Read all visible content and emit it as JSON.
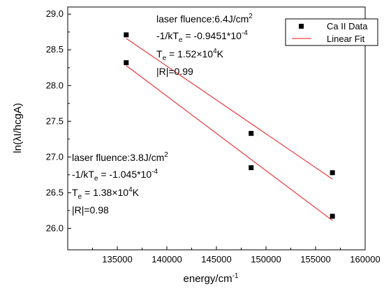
{
  "chart_data": {
    "type": "scatter",
    "title": "",
    "xlabel": "energy/cm",
    "xlabel_sup": "-1",
    "ylabel": "ln(λI/hcgA)",
    "xlim": [
      130000,
      160000
    ],
    "ylim": [
      25.7,
      29.1
    ],
    "x_ticks": [
      135000,
      140000,
      145000,
      150000,
      155000,
      160000
    ],
    "y_ticks": [
      26.0,
      26.5,
      27.0,
      27.5,
      28.0,
      28.5,
      29.0
    ],
    "grid": false,
    "legend_position": "top-right",
    "legend": [
      {
        "label": "Ca II Data",
        "marker": "square",
        "color": "#000000"
      },
      {
        "label": "Linear Fit",
        "marker": "line",
        "color": "#e8141c"
      }
    ],
    "series": [
      {
        "name": "Ca II Data",
        "points": [
          {
            "x": 135900,
            "y": 28.71
          },
          {
            "x": 148500,
            "y": 27.33
          },
          {
            "x": 156700,
            "y": 26.78
          }
        ]
      },
      {
        "name": "Ca II Data",
        "points": [
          {
            "x": 135900,
            "y": 28.32
          },
          {
            "x": 148500,
            "y": 26.85
          },
          {
            "x": 156700,
            "y": 26.17
          }
        ]
      }
    ],
    "fit_lines": [
      {
        "name": "Linear Fit",
        "x": [
          135900,
          156700
        ],
        "y": [
          28.66,
          26.69
        ]
      },
      {
        "name": "Linear Fit",
        "x": [
          135900,
          156700
        ],
        "y": [
          28.28,
          26.11
        ]
      }
    ],
    "annotations": [
      {
        "lines": [
          "laser fluence:6.4J/cm",
          "-1/kT",
          "T",
          "|R|=0.99"
        ]
      },
      {
        "lines": [
          "laser fluence:3.8J/cm",
          "-1/kT",
          "T",
          "|R|=0.98"
        ]
      }
    ]
  },
  "annotation_text": {
    "high": {
      "l1": "laser fluence:6.4J/cm",
      "l1_sup": "2",
      "l2a": "-1/kT",
      "l2_sub": "e",
      "l2b": " = -0.9451*10",
      "l2_sup": "-4",
      "l3a": "T",
      "l3_sub": "e",
      "l3b": " = 1.52×10",
      "l3_sup": "4",
      "l3c": "K",
      "l4": "|R|=0.99"
    },
    "low": {
      "l1": "laser fluence:3.8J/cm",
      "l1_sup": "2",
      "l2a": "-1/kT",
      "l2_sub": "e",
      "l2b": " = -1.045*10",
      "l2_sup": "-4",
      "l3a": "T",
      "l3_sub": "e",
      "l3b": " = 1.38×10",
      "l3_sup": "4",
      "l3c": "K",
      "l4": "|R|=0.98"
    }
  },
  "colors": {
    "axis": "#000000",
    "marker": "#000000",
    "fit": "#e8141c",
    "legend_border": "#000000"
  }
}
